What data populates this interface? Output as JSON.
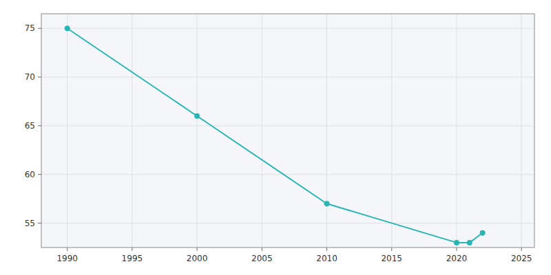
{
  "chart_data": {
    "type": "line",
    "x": [
      1990,
      2000,
      2010,
      2020,
      2021,
      2022
    ],
    "values": [
      75,
      66,
      57,
      53,
      53,
      54
    ],
    "color": "#2ab5b5",
    "marker": "circle",
    "xlim": [
      1988,
      2026
    ],
    "ylim": [
      52.5,
      76.5
    ],
    "xticks": [
      1990,
      1995,
      2000,
      2005,
      2010,
      2015,
      2020,
      2025
    ],
    "yticks": [
      55,
      60,
      65,
      70,
      75
    ],
    "grid": true
  }
}
